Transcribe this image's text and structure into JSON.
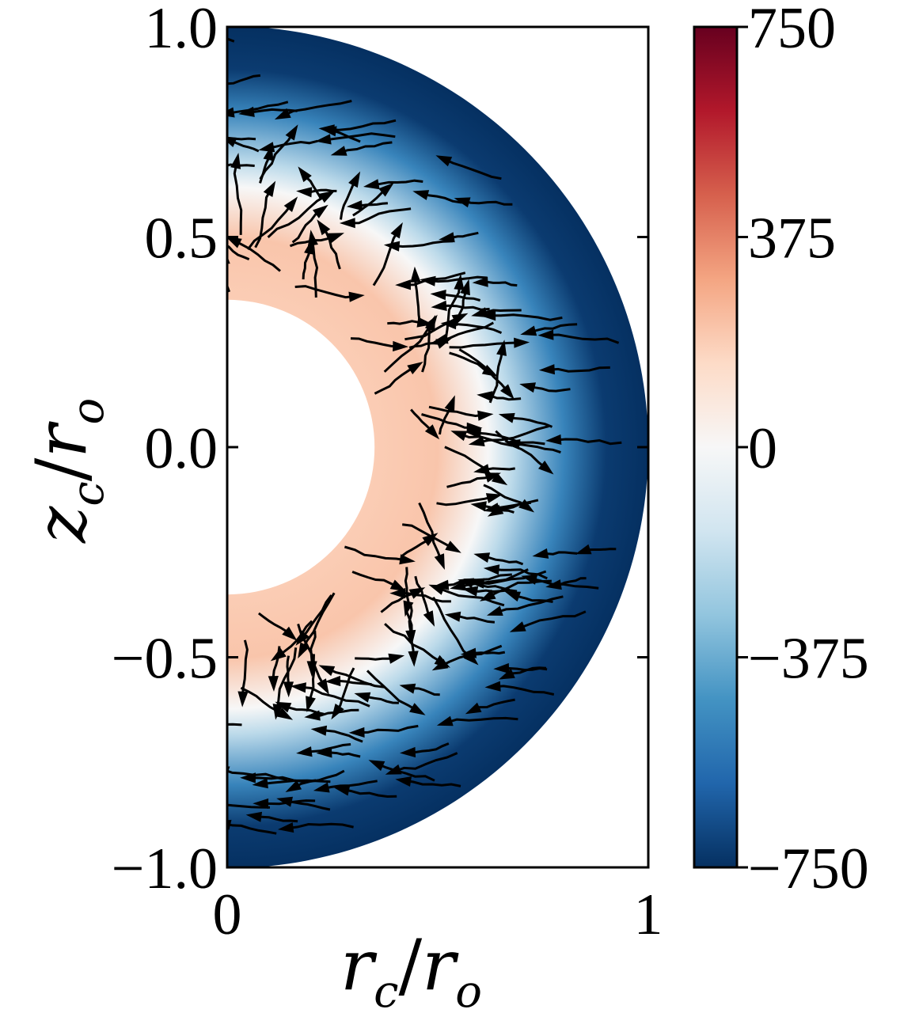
{
  "chart_data": {
    "type": "heatmap",
    "description_kind": "meridional half-annulus colormap with streamlines",
    "xlabel": {
      "main": "r",
      "sub": "c",
      "den": "r",
      "densub": "o"
    },
    "ylabel": {
      "main": "z",
      "sub": "c",
      "den": "r",
      "densub": "o"
    },
    "xlim": [
      0,
      1
    ],
    "ylim": [
      -1.0,
      1.0
    ],
    "x_ticks": [
      0,
      1
    ],
    "x_tick_labels": [
      "0",
      "1"
    ],
    "y_ticks": [
      1.0,
      0.5,
      0.0,
      -0.5,
      -1.0
    ],
    "y_tick_labels": [
      "1.0",
      "0.5",
      "0.0",
      "−0.5",
      "−1.0"
    ],
    "inner_radius": 0.35,
    "outer_radius": 1.0,
    "colorbar": {
      "min": -750,
      "max": 750,
      "ticks": [
        750,
        375,
        0,
        -375,
        -750
      ],
      "tick_labels": [
        "750",
        "375",
        "0",
        "−375",
        "−750"
      ],
      "colormap": "RdBu_r",
      "stops": [
        "#053061",
        "#2166ac",
        "#4393c3",
        "#92c5de",
        "#d1e5f0",
        "#f7f7f7",
        "#fddbc7",
        "#f4a582",
        "#d6604d",
        "#b2182b",
        "#67001f"
      ]
    },
    "field_profile": {
      "r": [
        0.35,
        0.5,
        0.62,
        0.68,
        0.8,
        0.9,
        1.0
      ],
      "value": [
        190,
        210,
        0,
        -200,
        -500,
        -720,
        -750
      ]
    },
    "grid": false,
    "streamline_color": "#000000"
  }
}
